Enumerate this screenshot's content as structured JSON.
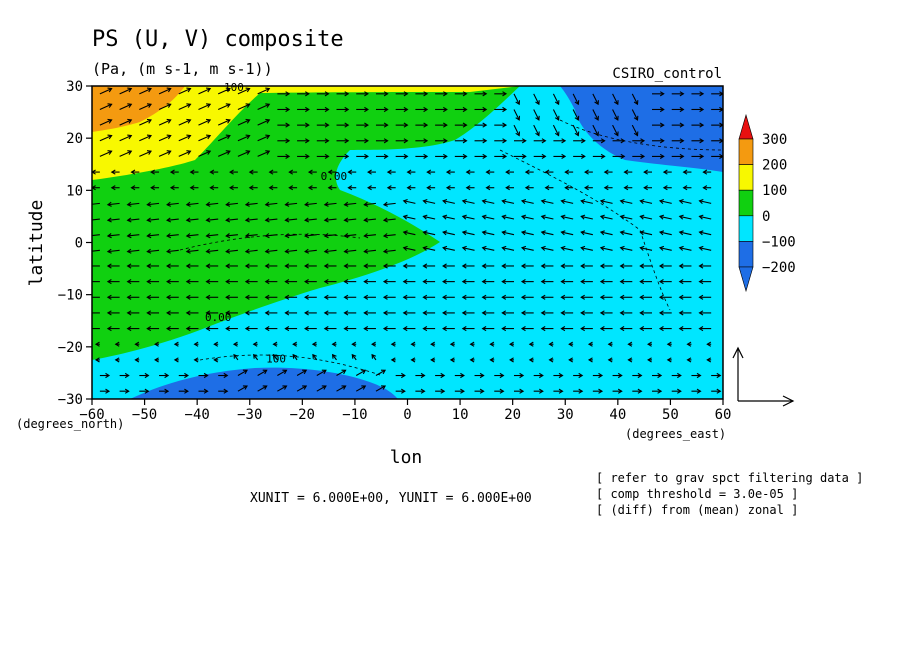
{
  "chart_data": {
    "type": "heatmap",
    "title": "PS (U, V) composite",
    "subtitle": "(Pa, (m s-1, m s-1))",
    "dataset_label": "CSIRO_control",
    "xlabel": "lon",
    "ylabel": "latitude",
    "x_unit_label": "(degrees_east)",
    "y_unit_label": "(degrees_north)",
    "xlim": [
      -60,
      60
    ],
    "ylim": [
      -30,
      30
    ],
    "x_ticks": [
      -60,
      -50,
      -40,
      -30,
      -20,
      -10,
      0,
      10,
      20,
      30,
      40,
      50,
      60
    ],
    "y_ticks": [
      -30,
      -20,
      -10,
      0,
      10,
      20,
      30
    ],
    "grid": false,
    "colorbar": {
      "placement": "right",
      "levels": [
        -200,
        -100,
        0,
        100,
        200,
        300
      ],
      "colors": [
        "#1e6ee6",
        "#00e6ff",
        "#10d010",
        "#f8f800",
        "#f49a10",
        "#e81010"
      ],
      "below_color": "#1e6ee6",
      "above_color": "#e81010",
      "labels": [
        "300",
        "200",
        "100",
        "0",
        "−100",
        "−200"
      ]
    },
    "contour_labels": [
      {
        "text": "100",
        "lon": -33,
        "lat": 29
      },
      {
        "text": "0.00",
        "lon": -14,
        "lat": 12
      },
      {
        "text": "0.00",
        "lon": -36,
        "lat": -15
      },
      {
        "text": "100",
        "lon": -25,
        "lat": -23
      }
    ],
    "field_regions": [
      {
        "value_band": "100 to 200",
        "desc": "north-west corner",
        "lon_range": [
          -60,
          -35
        ],
        "lat_range": [
          15,
          30
        ]
      },
      {
        "value_band": "200 to 300",
        "desc": "north-west maximum",
        "lon_range": [
          -60,
          -45
        ],
        "lat_range": [
          24,
          30
        ]
      },
      {
        "value_band": "-200 to -100",
        "desc": "north-east minimum",
        "lon_range": [
          30,
          60
        ],
        "lat_range": [
          18,
          30
        ]
      },
      {
        "value_band": "-200 to -100",
        "desc": "south-west minimum",
        "lon_range": [
          -40,
          -5
        ],
        "lat_range": [
          -30,
          -25
        ]
      },
      {
        "value_band": "0 to 100",
        "desc": "western tongue reaching lon 6 at equator",
        "lon_range": [
          -60,
          6
        ],
        "lat_range": [
          -22,
          28
        ]
      }
    ],
    "vector_field": {
      "quantity": "(U, V)",
      "xunit": 6.0,
      "yunit": 6.0
    },
    "vector_unit_text": "XUNIT = 6.000E+00, YUNIT = 6.000E+00",
    "notes": [
      "[ refer to grav spct filtering data ]",
      "[ comp threshold = 3.0e-05 ]",
      "[ (diff) from (mean) zonal ]"
    ]
  }
}
